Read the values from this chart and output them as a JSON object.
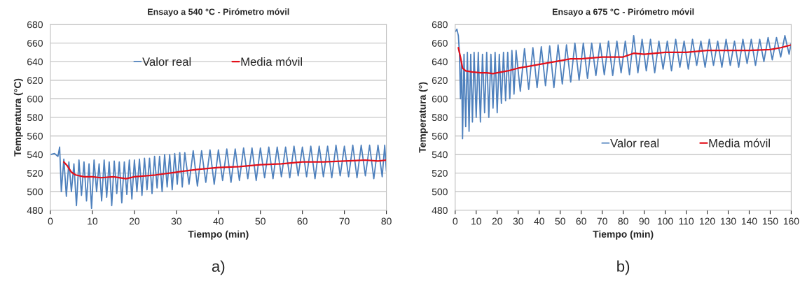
{
  "chart_data": [
    {
      "type": "line",
      "title": "Ensayo a 540 °C - Pirómetro móvil",
      "xlabel": "Tiempo (min)",
      "ylabel": "Temperatura (°C)",
      "xlim": [
        0,
        80
      ],
      "xticks": [
        0,
        10,
        20,
        30,
        40,
        50,
        60,
        70,
        80
      ],
      "ylim": [
        480,
        680
      ],
      "yticks": [
        480,
        500,
        520,
        540,
        560,
        580,
        600,
        620,
        640,
        660,
        680
      ],
      "grid": "y",
      "legend": "top",
      "annotations": [
        "a)"
      ],
      "series": [
        {
          "name": "Valor real",
          "color": "#4f81bd",
          "x": [
            0,
            1,
            1.8,
            2.2,
            2.6,
            3.2,
            3.8,
            4.4,
            5,
            5.6,
            6.2,
            6.8,
            7.4,
            8,
            8.6,
            9.2,
            9.8,
            10.4,
            11,
            11.6,
            12.2,
            12.8,
            13.4,
            14,
            14.6,
            15.2,
            15.8,
            16.4,
            17,
            17.6,
            18.2,
            18.8,
            19.4,
            20,
            20.6,
            21.2,
            21.8,
            22.4,
            23,
            23.6,
            24.2,
            24.8,
            25.4,
            26,
            26.6,
            27.2,
            27.8,
            28.4,
            29,
            29.6,
            30.2,
            30.8,
            31.4,
            32,
            33,
            34,
            35,
            36,
            37,
            38,
            39,
            40,
            41,
            42,
            43,
            44,
            45,
            46,
            47,
            48,
            49,
            50,
            51,
            52,
            53,
            54,
            55,
            56,
            57,
            58,
            59,
            60,
            61,
            62,
            63,
            64,
            65,
            66,
            67,
            68,
            69,
            70,
            71,
            72,
            73,
            74,
            75,
            76,
            77,
            78,
            79,
            79.6,
            80
          ],
          "values": [
            540,
            541,
            538,
            548,
            500,
            535,
            495,
            532,
            500,
            530,
            485,
            534,
            496,
            532,
            490,
            530,
            482,
            534,
            500,
            530,
            490,
            534,
            494,
            532,
            485,
            533,
            498,
            532,
            488,
            532,
            497,
            534,
            492,
            534,
            500,
            535,
            496,
            536,
            502,
            536,
            498,
            538,
            504,
            538,
            500,
            540,
            505,
            540,
            502,
            541,
            508,
            542,
            505,
            542,
            508,
            544,
            506,
            544,
            510,
            545,
            508,
            545,
            512,
            546,
            510,
            546,
            512,
            547,
            514,
            547,
            512,
            547,
            515,
            548,
            514,
            548,
            516,
            548,
            515,
            549,
            517,
            548,
            516,
            549,
            514,
            549,
            516,
            549,
            515,
            550,
            517,
            549,
            516,
            550,
            515,
            550,
            517,
            550,
            514,
            550,
            516,
            550,
            522
          ]
        },
        {
          "name": "Media móvil",
          "color": "#e3101a",
          "x": [
            3.2,
            4,
            5,
            6,
            8,
            10,
            12,
            15,
            18,
            20,
            25,
            30,
            35,
            40,
            45,
            50,
            55,
            60,
            65,
            70,
            75,
            78,
            80
          ],
          "values": [
            532,
            528,
            521,
            518,
            516,
            516,
            515,
            516,
            514,
            516,
            518,
            521,
            524,
            526,
            527,
            529,
            530,
            532,
            532,
            533,
            534,
            533,
            534
          ]
        }
      ]
    },
    {
      "type": "line",
      "title": "Ensayo a 675 °C - Pirómetro móvil",
      "xlabel": "Tiempo (min)",
      "ylabel": "Temperatura (°)",
      "xlim": [
        0,
        160
      ],
      "xticks": [
        0,
        10,
        20,
        30,
        40,
        50,
        60,
        70,
        80,
        90,
        100,
        110,
        120,
        130,
        140,
        150,
        160
      ],
      "ylim": [
        480,
        680
      ],
      "yticks": [
        480,
        500,
        520,
        540,
        560,
        580,
        600,
        620,
        640,
        660,
        680
      ],
      "grid": "y",
      "legend": "bottom right",
      "annotations": [
        "b)"
      ],
      "series": [
        {
          "name": "Valor real",
          "color": "#4f81bd",
          "x": [
            0,
            0.8,
            1.5,
            2,
            2.5,
            3,
            3.5,
            4.2,
            5,
            5.8,
            6.6,
            7.4,
            8.2,
            9,
            10,
            11,
            12,
            13,
            14,
            15,
            16,
            17,
            18,
            19,
            20,
            21,
            22,
            23,
            24,
            25,
            26,
            27,
            28,
            29,
            31,
            33,
            35,
            37,
            39,
            41,
            43,
            45,
            47,
            49,
            51,
            53,
            55,
            57,
            59,
            61,
            63,
            65,
            67,
            69,
            71,
            73,
            75,
            77,
            79,
            81,
            83,
            85,
            87,
            89,
            91,
            93,
            95,
            97,
            99,
            101,
            103,
            105,
            107,
            109,
            111,
            113,
            115,
            117,
            119,
            121,
            123,
            125,
            127,
            129,
            131,
            133,
            135,
            137,
            139,
            141,
            143,
            145,
            147,
            149,
            151,
            153,
            155,
            157,
            159,
            160
          ],
          "values": [
            672,
            675,
            668,
            650,
            600,
            640,
            557,
            648,
            570,
            650,
            565,
            648,
            575,
            650,
            580,
            650,
            575,
            648,
            585,
            650,
            580,
            648,
            590,
            650,
            585,
            648,
            595,
            650,
            598,
            650,
            600,
            652,
            605,
            652,
            608,
            654,
            610,
            655,
            612,
            656,
            614,
            657,
            612,
            658,
            616,
            658,
            618,
            660,
            620,
            660,
            622,
            660,
            625,
            660,
            626,
            662,
            625,
            662,
            628,
            662,
            626,
            668,
            628,
            664,
            630,
            664,
            628,
            662,
            632,
            662,
            630,
            664,
            634,
            662,
            632,
            664,
            636,
            662,
            634,
            664,
            636,
            662,
            634,
            664,
            636,
            662,
            634,
            664,
            638,
            664,
            636,
            664,
            640,
            666,
            642,
            666,
            645,
            668,
            648,
            660
          ]
        },
        {
          "name": "Media móvil",
          "color": "#e3101a",
          "x": [
            1.5,
            2.5,
            3.5,
            5,
            8,
            12,
            15,
            18,
            20,
            25,
            30,
            35,
            40,
            50,
            55,
            60,
            70,
            80,
            85,
            90,
            100,
            110,
            120,
            130,
            140,
            150,
            155,
            160
          ],
          "values": [
            655,
            645,
            633,
            630,
            629,
            628,
            628,
            627,
            628,
            630,
            633,
            635,
            637,
            641,
            643,
            643,
            645,
            645,
            649,
            648,
            650,
            650,
            652,
            652,
            652,
            653,
            655,
            658
          ]
        }
      ]
    }
  ]
}
